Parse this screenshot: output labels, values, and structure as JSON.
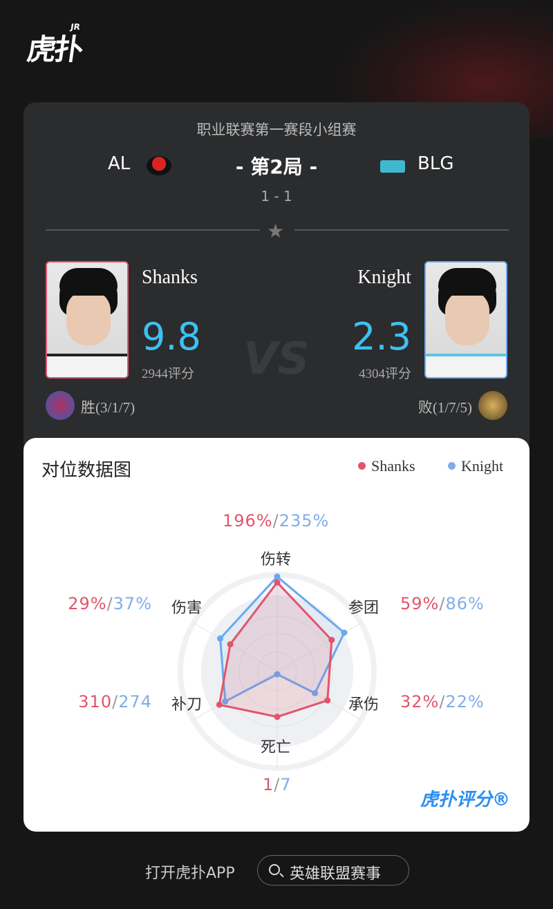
{
  "header": {
    "logo": "虎扑",
    "logo_mark": "JR"
  },
  "match": {
    "league": "职业联赛第一赛段小组赛",
    "game": "- 第2局 -",
    "score": "1 - 1",
    "team_left": "AL",
    "team_right": "BLG"
  },
  "players": [
    {
      "name": "Shanks",
      "rating": "9.8",
      "rating_count": "2944评分",
      "result": "胜(3/1/7)",
      "border": "#e2546a"
    },
    {
      "name": "Knight",
      "rating": "2.3",
      "rating_count": "4304评分",
      "result": "败(1/7/5)",
      "border": "#6aa8f0"
    }
  ],
  "vs": "VS",
  "chart_data": {
    "type": "radar",
    "title": "对位数据图",
    "axes": [
      "伤转",
      "参团",
      "承伤",
      "死亡",
      "补刀",
      "伤害"
    ],
    "series": [
      {
        "name": "Shanks",
        "color": "#e2546a",
        "labels": [
          "196%",
          "59%",
          "32%",
          "1",
          "310",
          "29%"
        ],
        "scaled": [
          0.92,
          0.65,
          0.6,
          0.47,
          0.69,
          0.56
        ]
      },
      {
        "name": "Knight",
        "color": "#6aa8f0",
        "labels": [
          "235%",
          "86%",
          "22%",
          "7",
          "274",
          "37%"
        ],
        "scaled": [
          0.98,
          0.8,
          0.45,
          0.03,
          0.62,
          0.68
        ]
      }
    ]
  },
  "brand": "虎扑评分®",
  "footer": {
    "open_app": "打开虎扑APP",
    "search": "英雄联盟赛事"
  }
}
